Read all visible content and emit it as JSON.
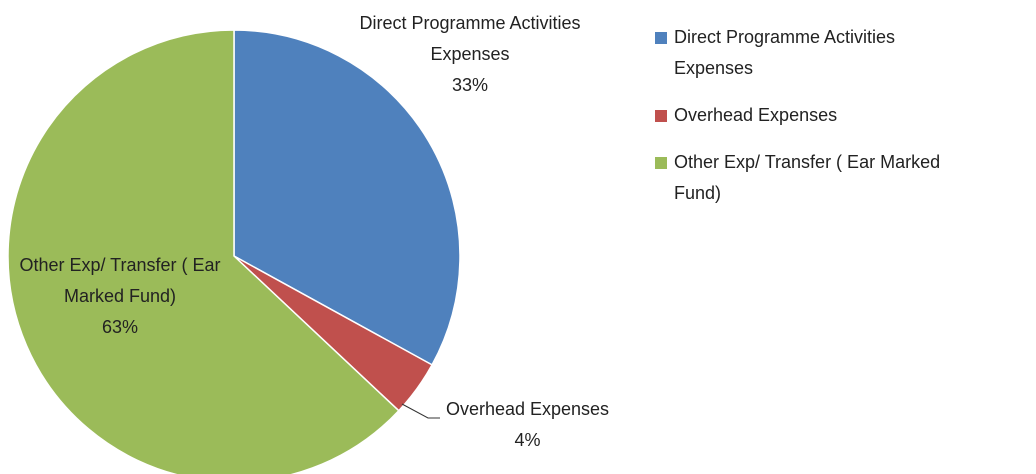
{
  "chart_data": {
    "type": "pie",
    "categories": [
      "Direct Programme Activities Expenses",
      "Overhead Expenses",
      "Other Exp/ Transfer ( Ear Marked Fund)"
    ],
    "values": [
      33,
      4,
      63
    ],
    "value_labels": [
      "33%",
      "4%",
      "63%"
    ],
    "colors": [
      "#4f81bd",
      "#c0504d",
      "#9bbb59"
    ],
    "legend": "right"
  }
}
